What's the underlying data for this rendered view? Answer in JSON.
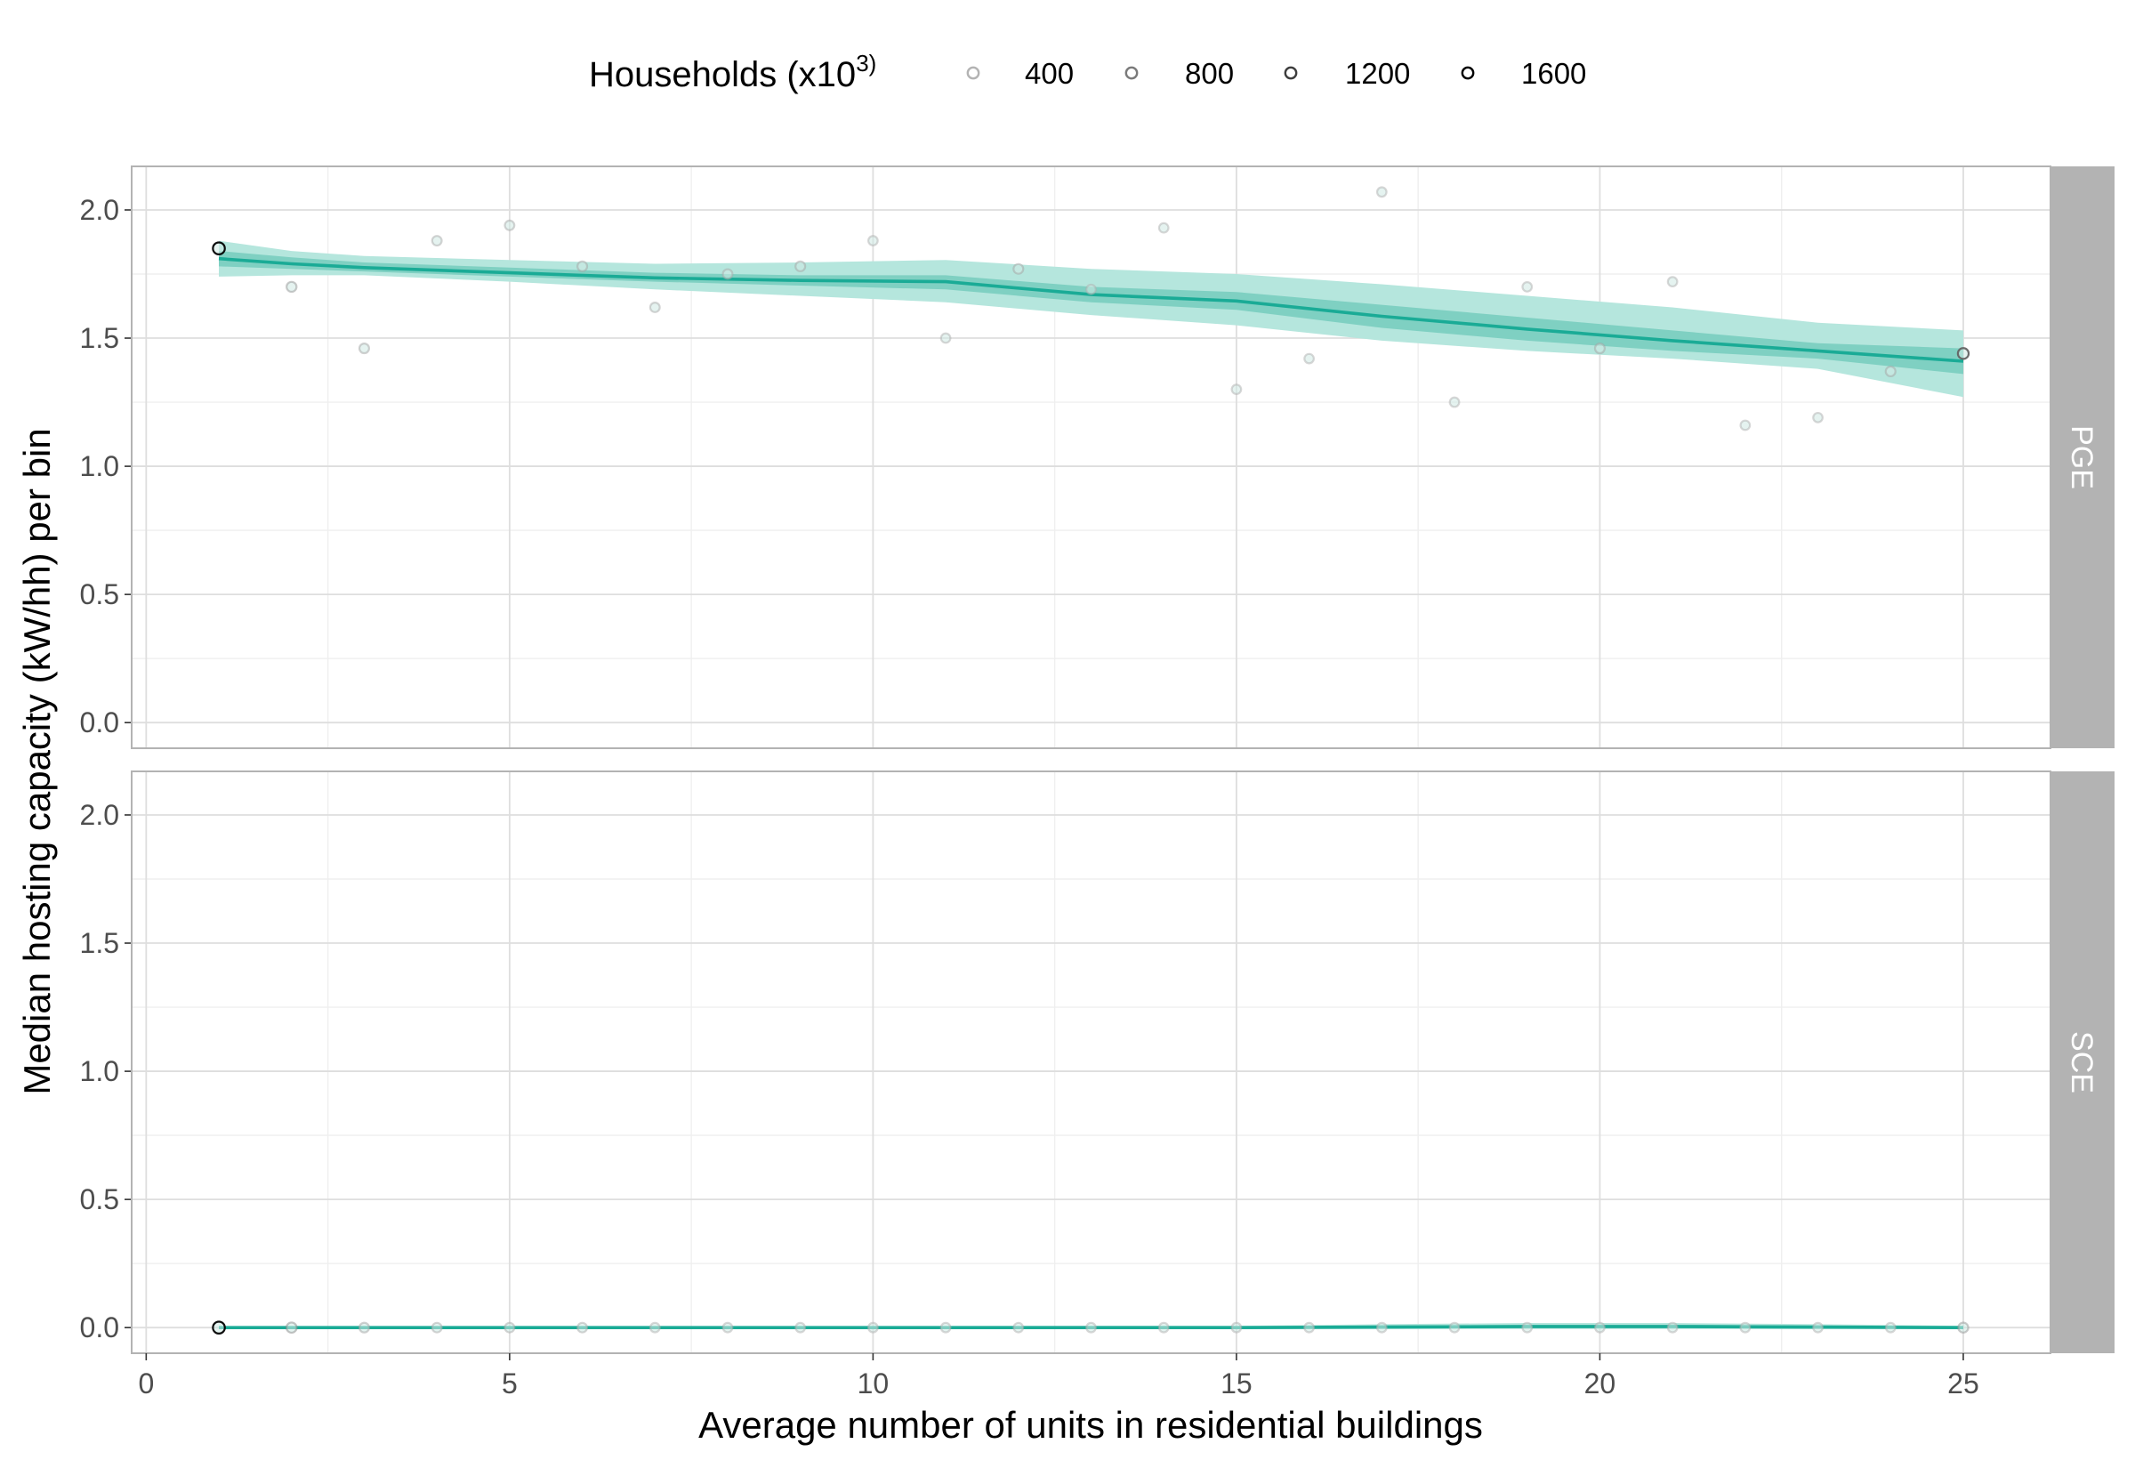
{
  "chart_data": {
    "type": "line",
    "subtype": "faceted scatter with smoothed trend and confidence ribbons",
    "xlabel": "Average number of units in residential buildings",
    "ylabel": "Median hosting capacity (kW/hh) per bin",
    "xlim": [
      -0.2,
      26.2
    ],
    "ylim": [
      -0.1,
      2.17
    ],
    "x_ticks": [
      0,
      5,
      10,
      15,
      20,
      25
    ],
    "x_tick_labels": [
      "0",
      "5",
      "10",
      "15",
      "20",
      "25"
    ],
    "y_ticks": [
      0.0,
      0.5,
      1.0,
      1.5,
      2.0
    ],
    "y_tick_labels": [
      "0.0",
      "0.5",
      "1.0",
      "1.5",
      "2.0"
    ],
    "grid": true,
    "legend": {
      "position": "top",
      "title_prefix": "Households (x10",
      "title_superscript": "3)",
      "entries": [
        {
          "label": "400",
          "value": 400,
          "color": "#b3b3b3"
        },
        {
          "label": "800",
          "value": 800,
          "color": "#7a7a7a"
        },
        {
          "label": "1200",
          "value": 1200,
          "color": "#3d3d3d"
        },
        {
          "label": "1600",
          "value": 1600,
          "color": "#000000"
        }
      ]
    },
    "colors": {
      "line": "#1aab96",
      "ribbon_outer": "#b5e6dd",
      "ribbon_inner": "#7fd0c2",
      "point_fill": "#cfe9e3",
      "strip_bg": "#b3b3b3",
      "panel_border": "#b3b3b3",
      "grid_major": "#dedede",
      "grid_minor": "#efefef"
    },
    "panels": [
      {
        "strip": "PGE",
        "points": [
          {
            "x": 1,
            "y": 1.85,
            "households": 1600
          },
          {
            "x": 2,
            "y": 1.7,
            "households": 400
          },
          {
            "x": 3,
            "y": 1.46,
            "households": 300
          },
          {
            "x": 4,
            "y": 1.88,
            "households": 250
          },
          {
            "x": 5,
            "y": 1.94,
            "households": 250
          },
          {
            "x": 6,
            "y": 1.78,
            "households": 300
          },
          {
            "x": 7,
            "y": 1.62,
            "households": 250
          },
          {
            "x": 8,
            "y": 1.75,
            "households": 250
          },
          {
            "x": 9,
            "y": 1.78,
            "households": 300
          },
          {
            "x": 10,
            "y": 1.88,
            "households": 200
          },
          {
            "x": 11,
            "y": 1.5,
            "households": 200
          },
          {
            "x": 12,
            "y": 1.77,
            "households": 300
          },
          {
            "x": 13,
            "y": 1.69,
            "households": 200
          },
          {
            "x": 14,
            "y": 1.93,
            "households": 200
          },
          {
            "x": 15,
            "y": 1.3,
            "households": 200
          },
          {
            "x": 16,
            "y": 1.42,
            "households": 200
          },
          {
            "x": 17,
            "y": 2.07,
            "households": 200
          },
          {
            "x": 18,
            "y": 1.25,
            "households": 200
          },
          {
            "x": 19,
            "y": 1.7,
            "households": 200
          },
          {
            "x": 20,
            "y": 1.46,
            "households": 300
          },
          {
            "x": 21,
            "y": 1.72,
            "households": 200
          },
          {
            "x": 22,
            "y": 1.16,
            "households": 200
          },
          {
            "x": 23,
            "y": 1.19,
            "households": 200
          },
          {
            "x": 24,
            "y": 1.37,
            "households": 300
          },
          {
            "x": 25,
            "y": 1.44,
            "households": 800
          }
        ],
        "trend": {
          "x": [
            1,
            2,
            3,
            5,
            7,
            9,
            11,
            13,
            15,
            17,
            19,
            21,
            23,
            25
          ],
          "y": [
            1.81,
            1.79,
            1.775,
            1.755,
            1.735,
            1.725,
            1.72,
            1.67,
            1.645,
            1.585,
            1.535,
            1.49,
            1.45,
            1.41
          ],
          "inner_lo": [
            1.78,
            1.77,
            1.76,
            1.74,
            1.72,
            1.705,
            1.69,
            1.64,
            1.61,
            1.54,
            1.49,
            1.45,
            1.42,
            1.36
          ],
          "inner_hi": [
            1.84,
            1.815,
            1.795,
            1.775,
            1.755,
            1.745,
            1.745,
            1.7,
            1.68,
            1.63,
            1.58,
            1.53,
            1.48,
            1.46
          ],
          "outer_lo": [
            1.74,
            1.745,
            1.745,
            1.72,
            1.69,
            1.665,
            1.64,
            1.59,
            1.55,
            1.49,
            1.45,
            1.42,
            1.38,
            1.27
          ],
          "outer_hi": [
            1.88,
            1.84,
            1.82,
            1.805,
            1.79,
            1.795,
            1.805,
            1.77,
            1.75,
            1.71,
            1.665,
            1.62,
            1.56,
            1.53
          ]
        }
      },
      {
        "strip": "SCE",
        "points": [
          {
            "x": 1,
            "y": 0.0,
            "households": 1600
          },
          {
            "x": 2,
            "y": 0.0,
            "households": 500
          },
          {
            "x": 3,
            "y": 0.0,
            "households": 300
          },
          {
            "x": 4,
            "y": 0.0,
            "households": 250
          },
          {
            "x": 5,
            "y": 0.0,
            "households": 250
          },
          {
            "x": 6,
            "y": 0.0,
            "households": 250
          },
          {
            "x": 7,
            "y": 0.0,
            "households": 200
          },
          {
            "x": 8,
            "y": 0.0,
            "households": 200
          },
          {
            "x": 9,
            "y": 0.0,
            "households": 200
          },
          {
            "x": 10,
            "y": 0.0,
            "households": 200
          },
          {
            "x": 11,
            "y": 0.0,
            "households": 200
          },
          {
            "x": 12,
            "y": 0.0,
            "households": 200
          },
          {
            "x": 13,
            "y": 0.0,
            "households": 200
          },
          {
            "x": 14,
            "y": 0.0,
            "households": 200
          },
          {
            "x": 15,
            "y": 0.0,
            "households": 200
          },
          {
            "x": 16,
            "y": 0.0,
            "households": 200
          },
          {
            "x": 17,
            "y": 0.0,
            "households": 200
          },
          {
            "x": 18,
            "y": 0.0,
            "households": 200
          },
          {
            "x": 19,
            "y": 0.0,
            "households": 200
          },
          {
            "x": 20,
            "y": 0.0,
            "households": 200
          },
          {
            "x": 21,
            "y": 0.0,
            "households": 200
          },
          {
            "x": 22,
            "y": 0.0,
            "households": 200
          },
          {
            "x": 23,
            "y": 0.0,
            "households": 200
          },
          {
            "x": 24,
            "y": 0.0,
            "households": 200
          },
          {
            "x": 25,
            "y": 0.0,
            "households": 400
          }
        ],
        "trend": {
          "x": [
            1,
            5,
            10,
            15,
            17,
            19,
            21,
            23,
            25
          ],
          "y": [
            0.0,
            0.0,
            0.0,
            0.0,
            0.002,
            0.004,
            0.004,
            0.002,
            0.0
          ],
          "inner_lo": [
            -0.004,
            -0.004,
            -0.004,
            -0.004,
            -0.004,
            -0.003,
            -0.003,
            -0.004,
            -0.004
          ],
          "inner_hi": [
            0.004,
            0.004,
            0.004,
            0.004,
            0.008,
            0.011,
            0.011,
            0.008,
            0.004
          ],
          "outer_lo": [
            -0.006,
            -0.006,
            -0.006,
            -0.006,
            -0.006,
            -0.005,
            -0.005,
            -0.006,
            -0.006
          ],
          "outer_hi": [
            0.006,
            0.006,
            0.006,
            0.007,
            0.013,
            0.018,
            0.018,
            0.013,
            0.007
          ]
        }
      }
    ]
  }
}
